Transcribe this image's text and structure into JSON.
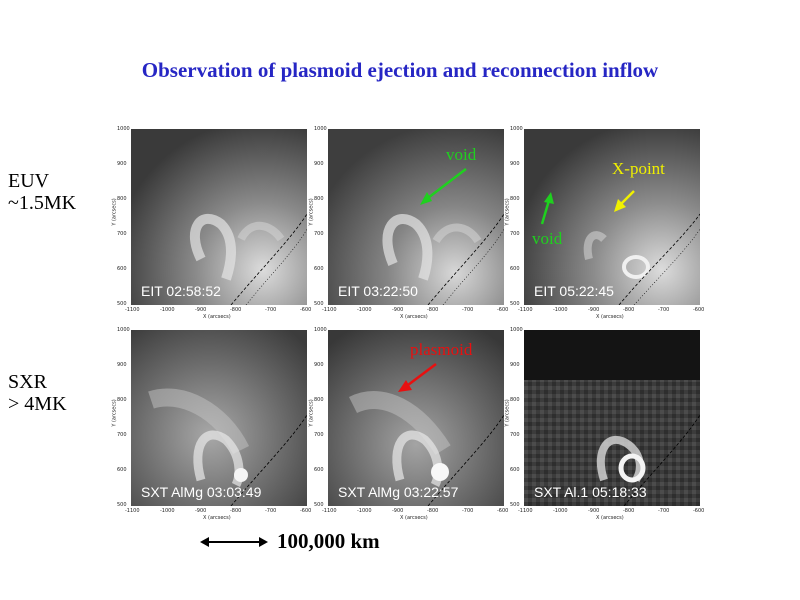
{
  "title": "Observation of plasmoid ejection and reconnection inflow",
  "rows": [
    {
      "line1": "EUV",
      "line2": "~1.5MK"
    },
    {
      "line1": "SXR",
      "line2": "> 4MK"
    }
  ],
  "panels": [
    {
      "caption": "EIT 02:58:52"
    },
    {
      "caption": "EIT 03:22:50"
    },
    {
      "caption": "EIT 05:22:45"
    },
    {
      "caption": "SXT  AlMg 03:03:49"
    },
    {
      "caption": "SXT  AlMg 03:22:57"
    },
    {
      "caption": "SXT  Al.1 05:18:33"
    }
  ],
  "annotations": {
    "void1": "void",
    "void2": "void",
    "xpoint": "X-point",
    "plasmoid": "plasmoid"
  },
  "colors": {
    "title": "#2626c4",
    "void": "#1fd01f",
    "xpoint": "#f0f000",
    "plasmoid": "#e81010"
  },
  "scale_label": "100,000 km",
  "axis": {
    "x_ticks": [
      "-1100",
      "-1000",
      "-900",
      "-800",
      "-700",
      "-600"
    ],
    "y_ticks": [
      "1000",
      "900",
      "800",
      "700",
      "600",
      "500"
    ],
    "x_label": "X (arcsecs)",
    "y_label": "Y (arcsecs)"
  }
}
